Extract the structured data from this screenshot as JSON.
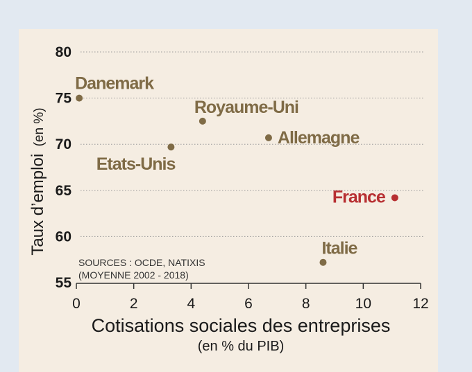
{
  "chart_data": {
    "type": "scatter",
    "xlabel": "Cotisations sociales des entreprises",
    "xlabel_sub": "(en % du PIB)",
    "ylabel": "Taux d’emploi",
    "ylabel_unit": "(en %)",
    "xlim": [
      0,
      12
    ],
    "ylim": [
      55,
      80
    ],
    "xticks": [
      0,
      2,
      4,
      6,
      8,
      10,
      12
    ],
    "yticks": [
      55,
      60,
      65,
      70,
      75,
      80
    ],
    "grid": "horizontal dotted",
    "points": [
      {
        "label": "Danemark",
        "x": 0.1,
        "y": 75.0
      },
      {
        "label": "Royaume-Uni",
        "x": 4.4,
        "y": 72.5
      },
      {
        "label": "Allemagne",
        "x": 6.7,
        "y": 70.7
      },
      {
        "label": "Etats-Unis",
        "x": 3.3,
        "y": 69.7
      },
      {
        "label": "France",
        "x": 11.1,
        "y": 64.2,
        "highlight": true
      },
      {
        "label": "Italie",
        "x": 8.6,
        "y": 57.2
      }
    ],
    "source": [
      "SOURCES : OCDE, NATIXIS",
      "(MOYENNE 2002 - 2018)"
    ]
  },
  "colors": {
    "panel": "#f5ede2",
    "point": "#7f6b46",
    "highlight": "#b72f32",
    "grid": "#9a9a9a",
    "axis": "#333333"
  }
}
